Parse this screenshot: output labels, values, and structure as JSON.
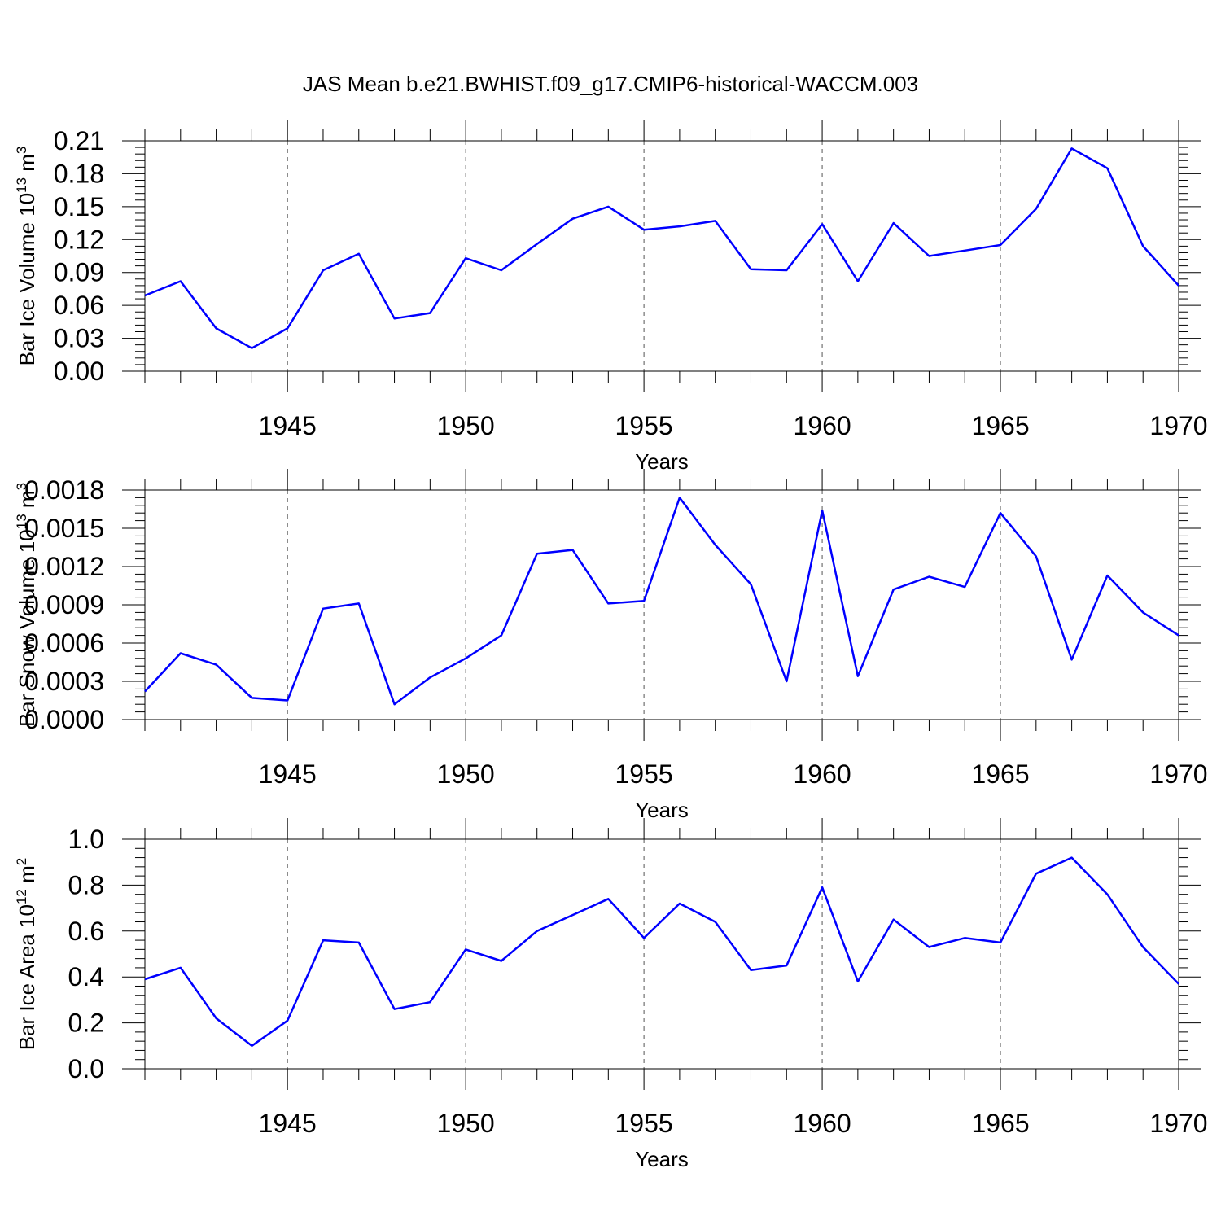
{
  "title": "JAS Mean b.e21.BWHIST.f09_g17.CMIP6-historical-WACCM.003",
  "colors": {
    "line": "#0000ff",
    "axis": "#000000",
    "grid": "#555555"
  },
  "chart_data": [
    {
      "type": "line",
      "title": "JAS Mean b.e21.BWHIST.f09_g17.CMIP6-historical-WACCM.003",
      "xlabel": "Years",
      "ylabel_main": "Bar Ice Volume 10",
      "ylabel_exp": "13",
      "ylabel_unit": " m",
      "ylabel_unit_exp": "3",
      "xlim": [
        1941,
        1970
      ],
      "ylim": [
        0,
        0.21
      ],
      "ytick_values": [
        0,
        0.03,
        0.06,
        0.09,
        0.12,
        0.15,
        0.18,
        0.21
      ],
      "ytick_labels": [
        "0.00",
        "0.03",
        "0.06",
        "0.09",
        "0.12",
        "0.15",
        "0.18",
        "0.21"
      ],
      "xtick_values": [
        1945,
        1950,
        1955,
        1960,
        1965,
        1970
      ],
      "xtick_labels": [
        "1945",
        "1950",
        "1955",
        "1960",
        "1965",
        "1970"
      ],
      "grid": "vertical dashed at major x ticks",
      "series": [
        {
          "name": "Bar Ice Volume",
          "x": [
            1941,
            1942,
            1943,
            1944,
            1945,
            1946,
            1947,
            1948,
            1949,
            1950,
            1951,
            1952,
            1953,
            1954,
            1955,
            1956,
            1957,
            1958,
            1959,
            1960,
            1961,
            1962,
            1963,
            1964,
            1965,
            1966,
            1967,
            1968,
            1969,
            1970
          ],
          "values": [
            0.069,
            0.082,
            0.039,
            0.021,
            0.039,
            0.092,
            0.107,
            0.048,
            0.053,
            0.103,
            0.092,
            0.116,
            0.139,
            0.15,
            0.129,
            0.132,
            0.137,
            0.093,
            0.092,
            0.134,
            0.082,
            0.135,
            0.105,
            0.11,
            0.115,
            0.148,
            0.203,
            0.185,
            0.114,
            0.078
          ]
        }
      ]
    },
    {
      "type": "line",
      "xlabel": "Years",
      "ylabel_main": "Bar Snow Volume 10",
      "ylabel_exp": "13",
      "ylabel_unit": " m",
      "ylabel_unit_exp": "3",
      "xlim": [
        1941,
        1970
      ],
      "ylim": [
        0,
        0.0018
      ],
      "ytick_values": [
        0,
        0.0003,
        0.0006,
        0.0009,
        0.0012,
        0.0015,
        0.0018
      ],
      "ytick_labels": [
        "0.0000",
        "0.0003",
        "0.0006",
        "0.0009",
        "0.0012",
        "0.0015",
        "0.0018"
      ],
      "xtick_values": [
        1945,
        1950,
        1955,
        1960,
        1965,
        1970
      ],
      "xtick_labels": [
        "1945",
        "1950",
        "1955",
        "1960",
        "1965",
        "1970"
      ],
      "grid": "vertical dashed at major x ticks",
      "series": [
        {
          "name": "Bar Snow Volume",
          "x": [
            1941,
            1942,
            1943,
            1944,
            1945,
            1946,
            1947,
            1948,
            1949,
            1950,
            1951,
            1952,
            1953,
            1954,
            1955,
            1956,
            1957,
            1958,
            1959,
            1960,
            1961,
            1962,
            1963,
            1964,
            1965,
            1966,
            1967,
            1968,
            1969,
            1970
          ],
          "values": [
            0.00022,
            0.00052,
            0.00043,
            0.00017,
            0.00015,
            0.00087,
            0.00091,
            0.00012,
            0.00033,
            0.00048,
            0.00066,
            0.0013,
            0.00133,
            0.00091,
            0.00093,
            0.00174,
            0.00137,
            0.00106,
            0.0003,
            0.00164,
            0.00034,
            0.00102,
            0.00112,
            0.00104,
            0.00162,
            0.00128,
            0.00047,
            0.00113,
            0.00084,
            0.00066
          ]
        }
      ]
    },
    {
      "type": "line",
      "xlabel": "Years",
      "ylabel_main": "Bar Ice Area 10",
      "ylabel_exp": "12",
      "ylabel_unit": " m",
      "ylabel_unit_exp": "2",
      "xlim": [
        1941,
        1970
      ],
      "ylim": [
        0,
        1.0
      ],
      "ytick_values": [
        0,
        0.2,
        0.4,
        0.6,
        0.8,
        1.0
      ],
      "ytick_labels": [
        "0.0",
        "0.2",
        "0.4",
        "0.6",
        "0.8",
        "1.0"
      ],
      "xtick_values": [
        1945,
        1950,
        1955,
        1960,
        1965,
        1970
      ],
      "xtick_labels": [
        "1945",
        "1950",
        "1955",
        "1960",
        "1965",
        "1970"
      ],
      "grid": "vertical dashed at major x ticks",
      "series": [
        {
          "name": "Bar Ice Area",
          "x": [
            1941,
            1942,
            1943,
            1944,
            1945,
            1946,
            1947,
            1948,
            1949,
            1950,
            1951,
            1952,
            1953,
            1954,
            1955,
            1956,
            1957,
            1958,
            1959,
            1960,
            1961,
            1962,
            1963,
            1964,
            1965,
            1966,
            1967,
            1968,
            1969,
            1970
          ],
          "values": [
            0.39,
            0.44,
            0.22,
            0.1,
            0.21,
            0.56,
            0.55,
            0.26,
            0.29,
            0.52,
            0.47,
            0.6,
            0.67,
            0.74,
            0.57,
            0.72,
            0.64,
            0.43,
            0.45,
            0.79,
            0.38,
            0.65,
            0.53,
            0.57,
            0.55,
            0.85,
            0.92,
            0.76,
            0.53,
            0.37
          ]
        }
      ]
    }
  ]
}
